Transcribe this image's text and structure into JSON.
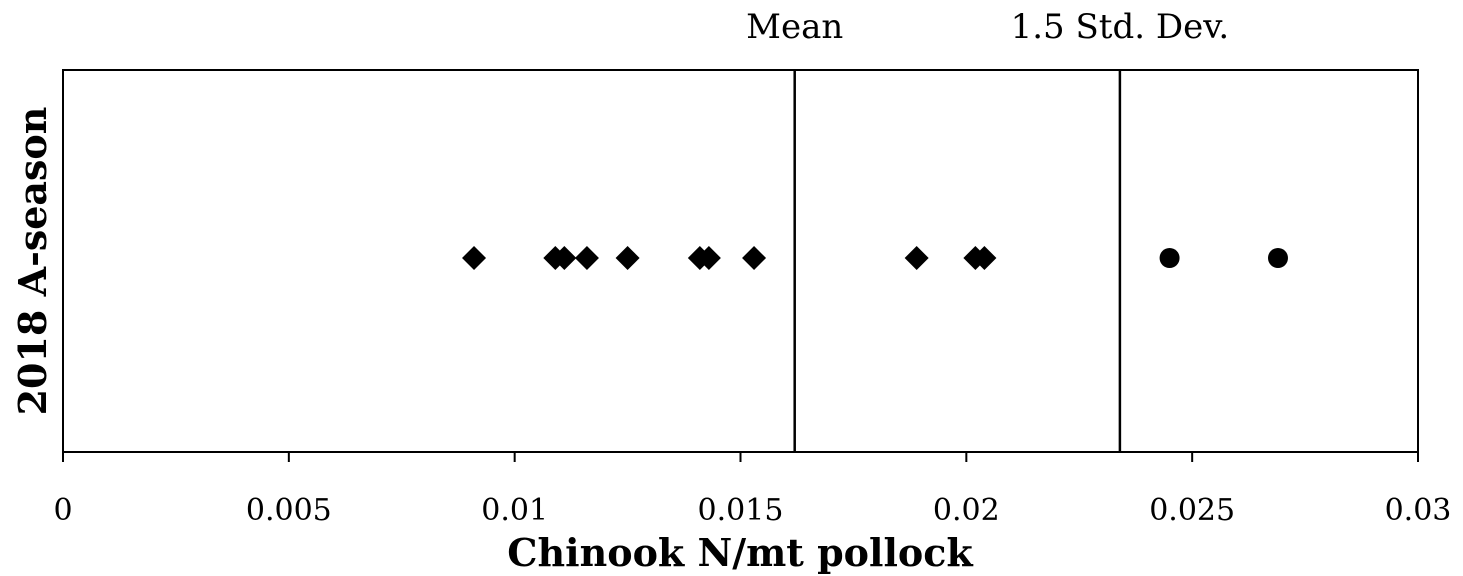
{
  "chart_data": {
    "type": "scatter",
    "title": "",
    "xlabel": "Chinook  N/mt pollock",
    "ylabel": "2018 A-season",
    "xlim": [
      0,
      0.03
    ],
    "xticks": [
      0,
      0.005,
      0.01,
      0.015,
      0.02,
      0.025,
      0.03
    ],
    "xtick_labels": [
      "0",
      "0.005",
      "0.01",
      "0.015",
      "0.02",
      "0.025",
      "0.03"
    ],
    "grid": false,
    "legend": "none",
    "reference_lines": [
      {
        "label": "Mean",
        "x": 0.0162
      },
      {
        "label": "1.5 Std. Dev.",
        "x": 0.0234
      }
    ],
    "series": [
      {
        "marker": "diamond",
        "color": "#000000",
        "x": [
          0.0091,
          0.0109,
          0.0111,
          0.0116,
          0.0125,
          0.0141,
          0.0143,
          0.0153,
          0.0189,
          0.0202,
          0.0204
        ],
        "y": [
          1,
          1,
          1,
          1,
          1,
          1,
          1,
          1,
          1,
          1,
          1
        ]
      },
      {
        "marker": "circle",
        "color": "#000000",
        "x": [
          0.0245,
          0.0269
        ],
        "y": [
          1,
          1
        ]
      }
    ]
  }
}
